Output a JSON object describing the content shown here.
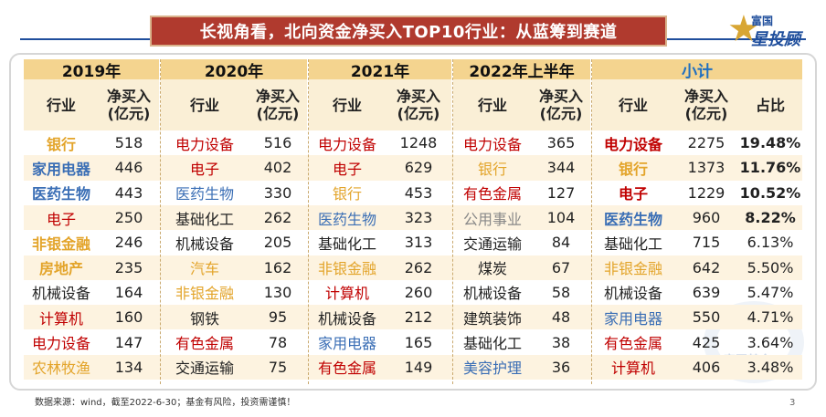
{
  "title": "长视角看，北向资金净买入TOP10行业：从蓝筹到赛道",
  "logo": {
    "line1": "富国",
    "line2": "星投顾"
  },
  "years": [
    "2019年",
    "2020年",
    "2021年",
    "2022年上半年"
  ],
  "summary_label": "小计",
  "col_headers": {
    "industry": "行业",
    "amount": "净买入\n(亿元)",
    "share": "占比"
  },
  "colors": {
    "red": "#c00000",
    "blue": "#3a6eb5",
    "gold": "#e3a42a",
    "grey": "#888888",
    "black": "#222222"
  },
  "tables": [
    {
      "rows": [
        {
          "name": "银行",
          "value": "518",
          "color": "#e3a42a",
          "bold": true
        },
        {
          "name": "家用电器",
          "value": "446",
          "color": "#3a6eb5",
          "bold": true
        },
        {
          "name": "医药生物",
          "value": "443",
          "color": "#3a6eb5",
          "bold": true
        },
        {
          "name": "电子",
          "value": "250",
          "color": "#c00000",
          "bold": false
        },
        {
          "name": "非银金融",
          "value": "246",
          "color": "#e3a42a",
          "bold": true
        },
        {
          "name": "房地产",
          "value": "235",
          "color": "#e3a42a",
          "bold": true
        },
        {
          "name": "机械设备",
          "value": "164",
          "color": "#222222",
          "bold": false
        },
        {
          "name": "计算机",
          "value": "160",
          "color": "#c00000",
          "bold": false
        },
        {
          "name": "电力设备",
          "value": "147",
          "color": "#c00000",
          "bold": false
        },
        {
          "name": "农林牧渔",
          "value": "134",
          "color": "#e3a42a",
          "bold": false
        }
      ]
    },
    {
      "rows": [
        {
          "name": "电力设备",
          "value": "516",
          "color": "#c00000",
          "bold": false
        },
        {
          "name": "电子",
          "value": "402",
          "color": "#c00000",
          "bold": false
        },
        {
          "name": "医药生物",
          "value": "330",
          "color": "#3a6eb5",
          "bold": false
        },
        {
          "name": "基础化工",
          "value": "262",
          "color": "#222222",
          "bold": false
        },
        {
          "name": "机械设备",
          "value": "205",
          "color": "#222222",
          "bold": false
        },
        {
          "name": "汽车",
          "value": "162",
          "color": "#e3a42a",
          "bold": false
        },
        {
          "name": "非银金融",
          "value": "130",
          "color": "#e3a42a",
          "bold": false
        },
        {
          "name": "钢铁",
          "value": "95",
          "color": "#222222",
          "bold": false
        },
        {
          "name": "有色金属",
          "value": "78",
          "color": "#c00000",
          "bold": false
        },
        {
          "name": "交通运输",
          "value": "75",
          "color": "#222222",
          "bold": false
        }
      ]
    },
    {
      "rows": [
        {
          "name": "电力设备",
          "value": "1248",
          "color": "#c00000",
          "bold": false
        },
        {
          "name": "电子",
          "value": "629",
          "color": "#c00000",
          "bold": false
        },
        {
          "name": "银行",
          "value": "453",
          "color": "#e3a42a",
          "bold": false
        },
        {
          "name": "医药生物",
          "value": "323",
          "color": "#3a6eb5",
          "bold": false
        },
        {
          "name": "基础化工",
          "value": "313",
          "color": "#222222",
          "bold": false
        },
        {
          "name": "非银金融",
          "value": "262",
          "color": "#e3a42a",
          "bold": false
        },
        {
          "name": "计算机",
          "value": "260",
          "color": "#c00000",
          "bold": false
        },
        {
          "name": "机械设备",
          "value": "212",
          "color": "#222222",
          "bold": false
        },
        {
          "name": "家用电器",
          "value": "165",
          "color": "#3a6eb5",
          "bold": false
        },
        {
          "name": "有色金属",
          "value": "149",
          "color": "#c00000",
          "bold": false
        }
      ]
    },
    {
      "rows": [
        {
          "name": "电力设备",
          "value": "365",
          "color": "#c00000",
          "bold": false
        },
        {
          "name": "银行",
          "value": "344",
          "color": "#e3a42a",
          "bold": false
        },
        {
          "name": "有色金属",
          "value": "127",
          "color": "#c00000",
          "bold": false
        },
        {
          "name": "公用事业",
          "value": "104",
          "color": "#888888",
          "bold": false
        },
        {
          "name": "交通运输",
          "value": "84",
          "color": "#222222",
          "bold": false
        },
        {
          "name": "煤炭",
          "value": "67",
          "color": "#222222",
          "bold": false
        },
        {
          "name": "机械设备",
          "value": "58",
          "color": "#222222",
          "bold": false
        },
        {
          "name": "建筑装饰",
          "value": "48",
          "color": "#222222",
          "bold": false
        },
        {
          "name": "基础化工",
          "value": "38",
          "color": "#222222",
          "bold": false
        },
        {
          "name": "美容护理",
          "value": "36",
          "color": "#3a6eb5",
          "bold": false
        }
      ]
    },
    {
      "rows": [
        {
          "name": "电力设备",
          "value": "2275",
          "share": "19.48%",
          "color": "#c00000",
          "bold": true
        },
        {
          "name": "银行",
          "value": "1373",
          "share": "11.76%",
          "color": "#e3a42a",
          "bold": true
        },
        {
          "name": "电子",
          "value": "1229",
          "share": "10.52%",
          "color": "#c00000",
          "bold": true
        },
        {
          "name": "医药生物",
          "value": "960",
          "share": "8.22%",
          "color": "#3a6eb5",
          "bold": true
        },
        {
          "name": "基础化工",
          "value": "715",
          "share": "6.13%",
          "color": "#222222",
          "bold": false
        },
        {
          "name": "非银金融",
          "value": "642",
          "share": "5.50%",
          "color": "#e3a42a",
          "bold": false
        },
        {
          "name": "机械设备",
          "value": "639",
          "share": "5.47%",
          "color": "#222222",
          "bold": false
        },
        {
          "name": "家用电器",
          "value": "550",
          "share": "4.71%",
          "color": "#3a6eb5",
          "bold": false
        },
        {
          "name": "有色金属",
          "value": "425",
          "share": "3.64%",
          "color": "#c00000",
          "bold": false
        },
        {
          "name": "计算机",
          "value": "406",
          "share": "3.48%",
          "color": "#c00000",
          "bold": false
        }
      ]
    }
  ],
  "footer": "数据来源：wind，截至2022-6-30；基金有风险，投资需谨慎！",
  "page_number": "3",
  "watermark": "富国基金"
}
